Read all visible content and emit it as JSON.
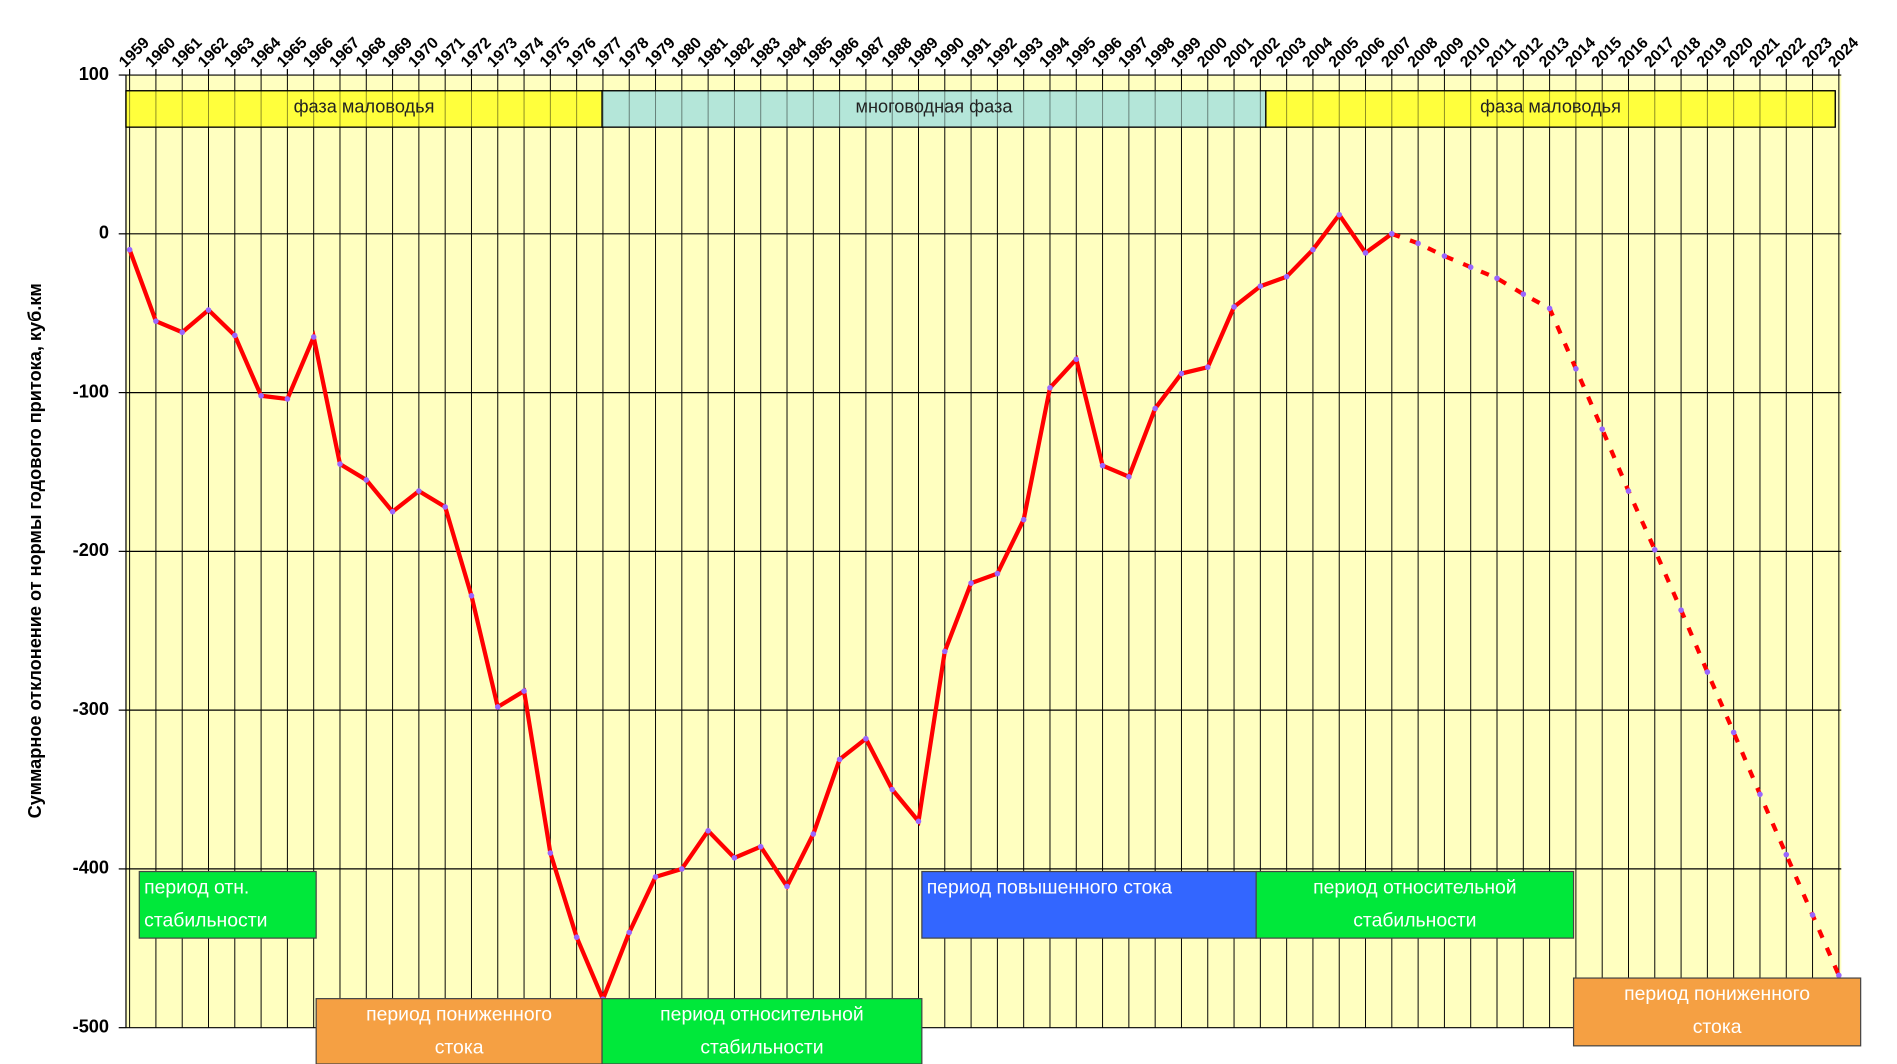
{
  "chart_data": {
    "type": "line",
    "y_label": "Суммарное отклонение от нормы годового притока, куб.км",
    "categories": [
      "1959",
      "1960",
      "1961",
      "1962",
      "1963",
      "1964",
      "1965",
      "1966",
      "1967",
      "1968",
      "1969",
      "1970",
      "1971",
      "1972",
      "1973",
      "1974",
      "1975",
      "1976",
      "1977",
      "1978",
      "1979",
      "1980",
      "1981",
      "1982",
      "1983",
      "1984",
      "1985",
      "1986",
      "1987",
      "1988",
      "1989",
      "1990",
      "1991",
      "1992",
      "1993",
      "1994",
      "1995",
      "1996",
      "1997",
      "1998",
      "1999",
      "2000",
      "2001",
      "2002",
      "2003",
      "2004",
      "2005",
      "2006",
      "2007",
      "2008",
      "2009",
      "2010",
      "2011",
      "2012",
      "2013",
      "2014",
      "2015",
      "2016",
      "2017",
      "2018",
      "2019",
      "2020",
      "2021",
      "2022",
      "2023",
      "2024"
    ],
    "series": [
      {
        "color": "#ff0000",
        "style": "solid",
        "marker_color": "#9966ff",
        "values": [
          -10,
          -55,
          -62,
          -48,
          -64,
          -102,
          -104,
          -65,
          -145,
          -155,
          -175,
          -162,
          -172,
          -228,
          -298,
          -288,
          -390,
          -443,
          -482,
          -440,
          -405,
          -400,
          -376,
          -393,
          -386,
          -411,
          -378,
          -331,
          -318,
          -350,
          -370,
          -263,
          -220,
          -214,
          -180,
          -97,
          -79,
          -146,
          -153,
          -110,
          -88,
          -84,
          -46,
          -33,
          -27,
          -10,
          12,
          -12,
          0,
          null,
          null,
          null,
          null,
          null,
          null,
          null,
          null,
          null,
          null,
          null,
          null,
          null,
          null,
          null,
          null,
          null
        ]
      },
      {
        "color": "#ff0000",
        "style": "dashed",
        "marker_color": "#9966ff",
        "values": [
          null,
          null,
          null,
          null,
          null,
          null,
          null,
          null,
          null,
          null,
          null,
          null,
          null,
          null,
          null,
          null,
          null,
          null,
          null,
          null,
          null,
          null,
          null,
          null,
          null,
          null,
          null,
          null,
          null,
          null,
          null,
          null,
          null,
          null,
          null,
          null,
          null,
          null,
          null,
          null,
          null,
          null,
          null,
          null,
          null,
          null,
          null,
          null,
          0,
          -6,
          -14,
          -21,
          -28,
          -38,
          -47,
          -85,
          -123,
          -162,
          -199,
          -237,
          -276,
          -314,
          -353,
          -391,
          -429,
          -467
        ]
      }
    ],
    "ylim": [
      -500,
      100
    ],
    "yticks": [
      100,
      0,
      -100,
      -200,
      -300,
      -400,
      -500
    ],
    "grid": true,
    "plot_color": "#ffffc0",
    "phases": [
      {
        "label": "фаза маловодья",
        "color": "#ffff3c"
      },
      {
        "label": "многоводная фаза",
        "color": "#b4e6d9"
      },
      {
        "label": "фаза маловодья",
        "color": "#ffff3c"
      }
    ],
    "periods": [
      {
        "lines": [
          "период отн.",
          "стабильности"
        ],
        "color": "#00e83a"
      },
      {
        "lines": [
          "период пониженного",
          "стока"
        ],
        "color": "#f5a043"
      },
      {
        "lines": [
          "период относительной",
          "стабильности"
        ],
        "color": "#00e83a"
      },
      {
        "lines": [
          "период повышенного стока"
        ],
        "color": "#3366ff"
      },
      {
        "lines": [
          "период относительной",
          "стабильности"
        ],
        "color": "#00e83a"
      },
      {
        "lines": [
          "период пониженного",
          "стока"
        ],
        "color": "#f5a043"
      }
    ]
  }
}
